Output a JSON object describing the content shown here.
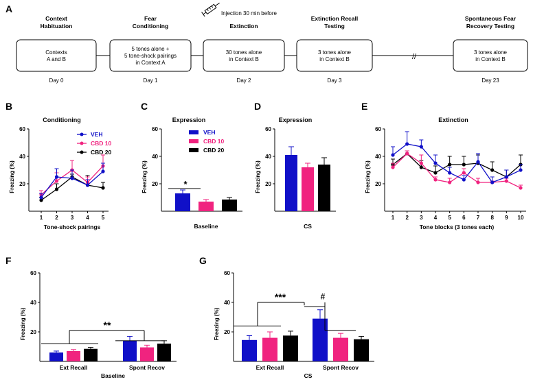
{
  "colors": {
    "VEH": "#1010c8",
    "CBD10": "#f0237f",
    "CBD20": "#000000"
  },
  "panelA": {
    "letter": "A",
    "injection_note": "Injection 30 min before",
    "stages": [
      {
        "title": [
          "Context",
          "Habituation"
        ],
        "box": [
          "Contexts",
          "A and B"
        ],
        "day": "Day 0"
      },
      {
        "title": [
          "Fear",
          "Conditioning"
        ],
        "box": [
          "5 tones alone +",
          "5 tone-shock pairings",
          "in Context A"
        ],
        "day": "Day 1"
      },
      {
        "title": [
          "",
          "Extinction"
        ],
        "box": [
          "30 tones alone",
          "in Context B"
        ],
        "day": "Day 2"
      },
      {
        "title": [
          "Extinction Recall",
          "Testing"
        ],
        "box": [
          "3 tones alone",
          "in Context B"
        ],
        "day": "Day 3"
      },
      {
        "title": [
          "Spontaneous Fear",
          "Recovery Testing"
        ],
        "box": [
          "3 tones alone",
          "in Context B"
        ],
        "day": "Day 23"
      }
    ],
    "break_mark": "//"
  },
  "chart_data": [
    {
      "id": "B",
      "type": "line",
      "title": "Conditioning",
      "xlabel": "Tone-shock pairings",
      "ylabel": "Freezing (%)",
      "ylim": [
        0,
        60
      ],
      "yticks": [
        20,
        40,
        60
      ],
      "x": [
        1,
        2,
        3,
        4,
        5
      ],
      "legend": "top-right",
      "series": [
        {
          "name": "VEH",
          "values": [
            10,
            25,
            24,
            19,
            29
          ],
          "err": [
            3,
            6,
            6,
            4,
            6
          ]
        },
        {
          "name": "CBD 10",
          "values": [
            12,
            22,
            30,
            21,
            33
          ],
          "err": [
            3,
            6,
            7,
            4,
            8
          ]
        },
        {
          "name": "CBD 20",
          "values": [
            8,
            16,
            25,
            19,
            17
          ],
          "err": [
            2,
            4,
            2,
            7,
            4
          ]
        }
      ]
    },
    {
      "id": "C",
      "type": "bar",
      "title": "Expression",
      "xlabel": "Baseline",
      "ylabel": "Freezing (%)",
      "ylim": [
        0,
        60
      ],
      "yticks": [
        20,
        40,
        60
      ],
      "categories": [
        "Baseline"
      ],
      "legend": "top-right",
      "series": [
        {
          "name": "VEH",
          "values": [
            13
          ],
          "err": [
            2.5
          ]
        },
        {
          "name": "CBD 10",
          "values": [
            7
          ],
          "err": [
            1.5
          ]
        },
        {
          "name": "CBD 20",
          "values": [
            8.5
          ],
          "err": [
            1.5
          ]
        }
      ],
      "annotation": "*"
    },
    {
      "id": "D",
      "type": "bar",
      "title": "Expression",
      "xlabel": "CS",
      "ylabel": "Freezing (%)",
      "ylim": [
        0,
        60
      ],
      "yticks": [
        20,
        40,
        60
      ],
      "categories": [
        "CS"
      ],
      "series": [
        {
          "name": "VEH",
          "values": [
            41
          ],
          "err": [
            6
          ]
        },
        {
          "name": "CBD 10",
          "values": [
            32
          ],
          "err": [
            3
          ]
        },
        {
          "name": "CBD 20",
          "values": [
            34
          ],
          "err": [
            5
          ]
        }
      ]
    },
    {
      "id": "E",
      "type": "line",
      "title": "Extinction",
      "xlabel": "Tone blocks (3 tones each)",
      "ylabel": "Freezing (%)",
      "ylim": [
        0,
        60
      ],
      "yticks": [
        20,
        40,
        60
      ],
      "x": [
        1,
        2,
        3,
        4,
        5,
        6,
        7,
        8,
        9,
        10
      ],
      "series": [
        {
          "name": "VEH",
          "values": [
            41,
            49,
            47,
            35,
            28,
            23,
            36,
            21,
            25,
            30
          ],
          "err": [
            6,
            9,
            5,
            6,
            4,
            3,
            6,
            4,
            5,
            4
          ]
        },
        {
          "name": "CBD 10",
          "values": [
            32,
            42,
            35,
            23,
            21,
            28,
            21,
            21,
            22,
            17
          ],
          "err": [
            3,
            2,
            6,
            2,
            3,
            3,
            3,
            1,
            2,
            2
          ]
        },
        {
          "name": "CBD 20",
          "values": [
            34,
            42,
            32,
            28,
            34,
            34,
            35,
            30,
            25,
            34
          ],
          "err": [
            4,
            2,
            5,
            5,
            6,
            6,
            6,
            6,
            5,
            7
          ]
        }
      ]
    },
    {
      "id": "F",
      "type": "bar",
      "title": "",
      "xlabel": "Baseline",
      "ylabel": "Freezing (%)",
      "ylim": [
        0,
        60
      ],
      "yticks": [
        20,
        40,
        60
      ],
      "categories": [
        "Ext Recall",
        "Spont Recov"
      ],
      "series": [
        {
          "name": "VEH",
          "values": [
            6,
            14
          ],
          "err": [
            1,
            3
          ]
        },
        {
          "name": "CBD 10",
          "values": [
            7,
            9.5
          ],
          "err": [
            1,
            1.5
          ]
        },
        {
          "name": "CBD 20",
          "values": [
            8.5,
            12
          ],
          "err": [
            1,
            2
          ]
        }
      ],
      "annotations": [
        "**"
      ]
    },
    {
      "id": "G",
      "type": "bar",
      "title": "",
      "xlabel": "CS",
      "ylabel": "Freezing (%)",
      "ylim": [
        0,
        60
      ],
      "yticks": [
        20,
        40,
        60
      ],
      "categories": [
        "Ext Recall",
        "Spont Recov"
      ],
      "series": [
        {
          "name": "VEH",
          "values": [
            14.5,
            29
          ],
          "err": [
            3,
            6
          ]
        },
        {
          "name": "CBD 10",
          "values": [
            16,
            16
          ],
          "err": [
            4,
            3
          ]
        },
        {
          "name": "CBD 20",
          "values": [
            17.5,
            15
          ],
          "err": [
            3,
            2
          ]
        }
      ],
      "annotations": [
        "***",
        "#"
      ]
    }
  ]
}
